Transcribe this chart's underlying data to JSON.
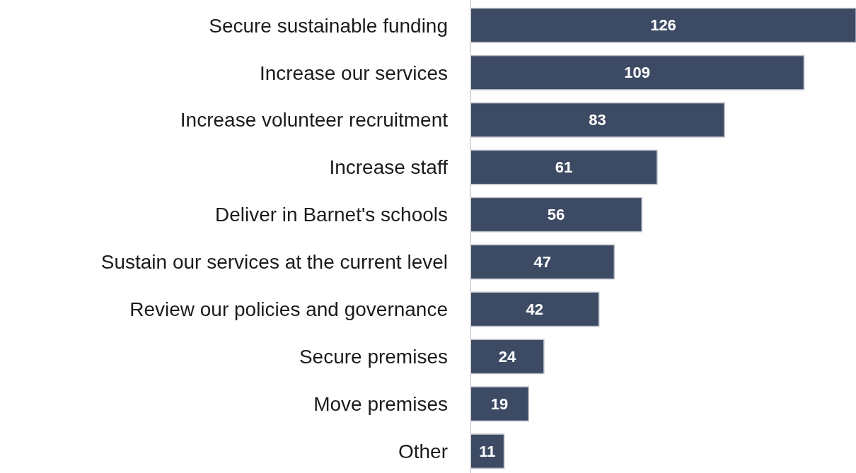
{
  "chart_data": {
    "type": "bar",
    "orientation": "horizontal",
    "categories": [
      "Secure sustainable funding",
      "Increase our services",
      "Increase volunteer recruitment",
      "Increase staff",
      "Deliver in Barnet's schools",
      "Sustain our services at the current level",
      "Review our policies and governance",
      "Secure premises",
      "Move premises",
      "Other"
    ],
    "values": [
      126,
      109,
      83,
      61,
      56,
      47,
      42,
      24,
      19,
      11
    ],
    "color": "#3c4a64",
    "data_labels": true
  }
}
